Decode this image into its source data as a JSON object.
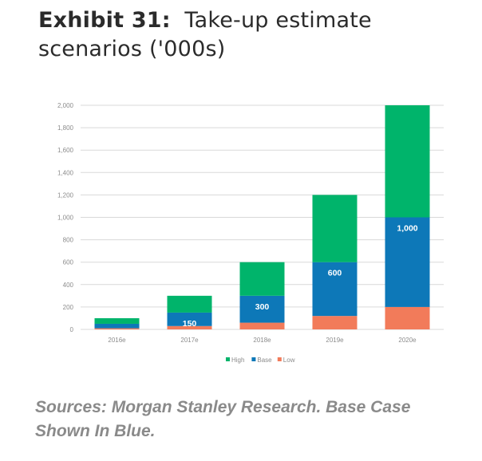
{
  "header": {
    "exhibit_label": "Exhibit 31:",
    "title_line1": "Take-up estimate",
    "title_line2": "scenarios ('000s)"
  },
  "footer": {
    "source_line1": "Sources: Morgan Stanley Research. Base Case",
    "source_line2": "Shown In Blue."
  },
  "chart_data": {
    "type": "bar",
    "stacked": true,
    "title": "Take-up estimate scenarios ('000s)",
    "xlabel": "",
    "ylabel": "",
    "categories": [
      "2016e",
      "2017e",
      "2018e",
      "2019e",
      "2020e"
    ],
    "series": [
      {
        "name": "Low",
        "color": "#f27b5a",
        "values": [
          10,
          30,
          60,
          120,
          200
        ]
      },
      {
        "name": "Base",
        "color": "#0d78b8",
        "values": [
          50,
          150,
          300,
          600,
          1000
        ]
      },
      {
        "name": "High",
        "color": "#00b46b",
        "values": [
          100,
          300,
          600,
          1200,
          2000
        ]
      }
    ],
    "data_labels": {
      "series": "Base",
      "labels": [
        "",
        "150",
        "300",
        "600",
        "1,000"
      ]
    },
    "ylim": [
      0,
      2000
    ],
    "yticks": [
      0,
      200,
      400,
      600,
      800,
      1000,
      1200,
      1400,
      1600,
      1800,
      2000
    ],
    "ytick_labels": [
      "0",
      "200",
      "400",
      "600",
      "800",
      "1,000",
      "1,200",
      "1,400",
      "1,600",
      "1,800",
      "2,000"
    ],
    "legend": {
      "position": "bottom",
      "entries": [
        "High",
        "Base",
        "Low"
      ]
    },
    "grid": true,
    "note": "Bars are layered: Low at bottom, Base top marks base total, High top marks high total"
  }
}
